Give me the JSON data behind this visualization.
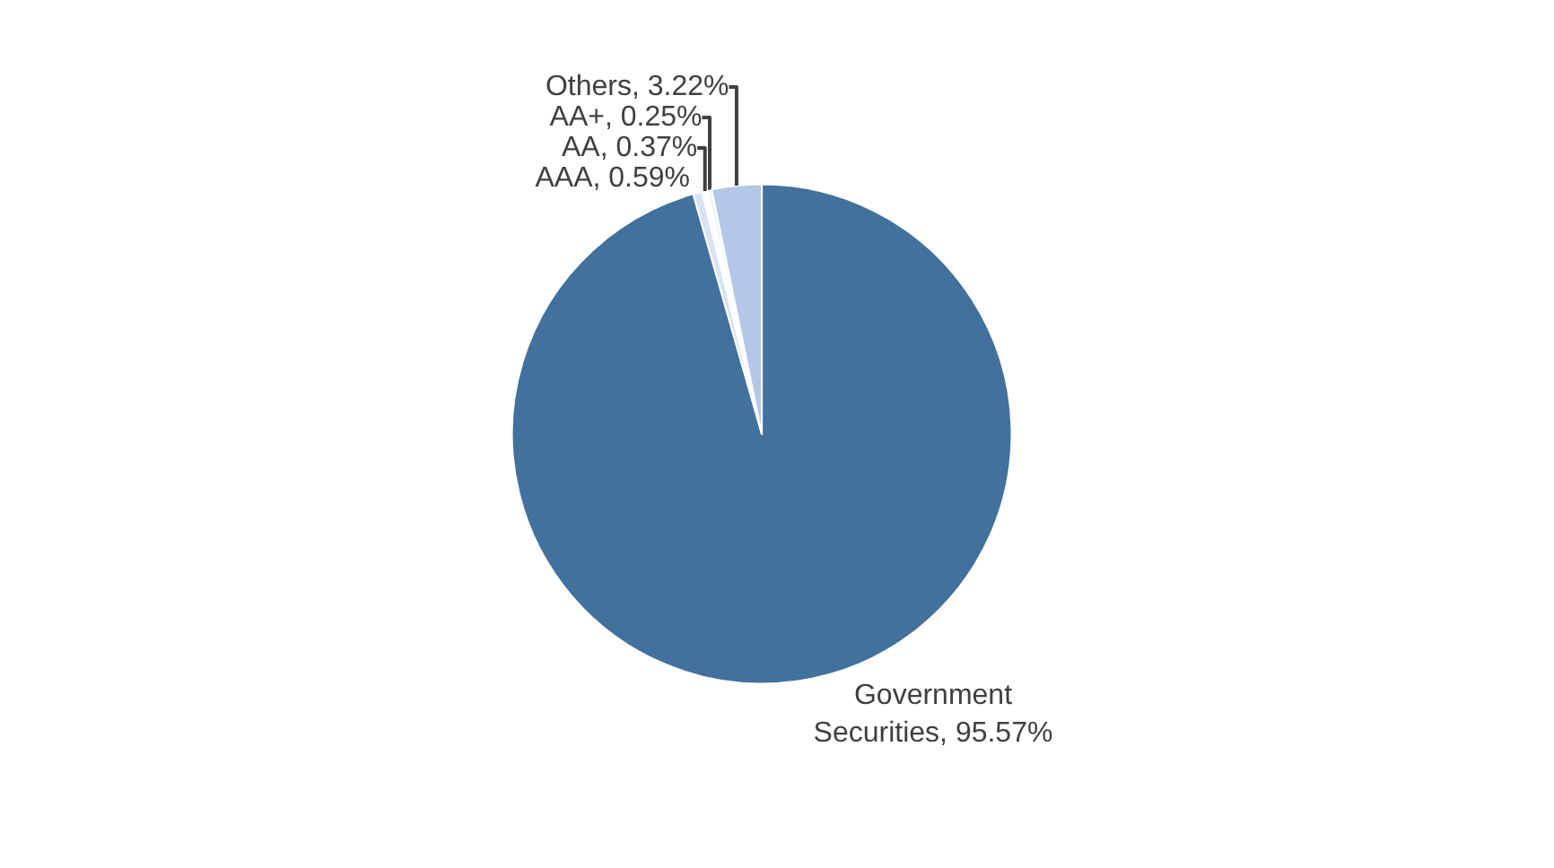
{
  "chart_data": {
    "type": "pie",
    "categories": [
      "Government Securities",
      "AAA",
      "AA",
      "AA+",
      "Others"
    ],
    "values": [
      95.57,
      0.59,
      0.37,
      0.25,
      3.22
    ],
    "value_labels": [
      "95.57%",
      "0.59%",
      "0.37%",
      "0.25%",
      "3.22%"
    ],
    "colors": [
      "#41719c",
      "#dae3f3",
      "#ffffff",
      "#eef2f9",
      "#b4c7e7"
    ],
    "legend": false
  }
}
